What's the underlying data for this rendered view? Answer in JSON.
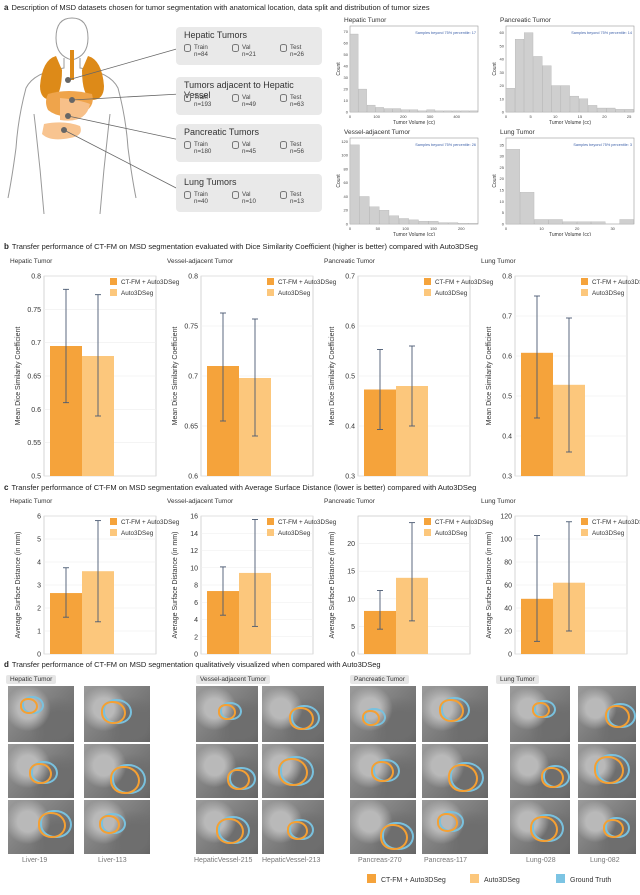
{
  "sections": {
    "a": {
      "letter": "a",
      "text": "Description of MSD datasets chosen for tumor segmentation with anatomical location, data split and distribution of tumor sizes"
    },
    "b": {
      "letter": "b",
      "text": "Transfer performance of CT-FM on MSD segmentation evaluated with Dice Similarity Coefficient (higher is better) compared with Auto3DSeg"
    },
    "c": {
      "letter": "c",
      "text": "Transfer performance of CT-FM on MSD segmentation evaluated with Average Surface Distance (lower is better) compared with Auto3DSeg"
    },
    "d": {
      "letter": "d",
      "text": "Transfer performance of CT-FM on MSD segmentation qualitatively visualized when compared with Auto3DSeg"
    }
  },
  "datasets": [
    {
      "title": "Hepatic Tumors",
      "train": "Train",
      "train_n": "n=84",
      "val": "Val",
      "val_n": "n=21",
      "test": "Test",
      "test_n": "n=26"
    },
    {
      "title": "Tumors adjacent to Hepatic Vessel",
      "train": "Train",
      "train_n": "n=193",
      "val": "Val",
      "val_n": "n=49",
      "test": "Test",
      "test_n": "n=63"
    },
    {
      "title": "Pancreatic Tumors",
      "train": "Train",
      "train_n": "n=180",
      "val": "Val",
      "val_n": "n=45",
      "test": "Test",
      "test_n": "n=56"
    },
    {
      "title": "Lung Tumors",
      "train": "Train",
      "train_n": "n=40",
      "val": "Val",
      "val_n": "n=10",
      "test": "Test",
      "test_n": "n=13"
    }
  ],
  "histograms": [
    {
      "title": "Hepatic Tumor",
      "note": "Samples beyond 75% percentile: 17",
      "ylabel": "Count",
      "xlabel": "Tumor Volume (cc)",
      "xticks": [
        "0",
        "100",
        "200",
        "300",
        "400"
      ],
      "yticks": [
        "0",
        "10",
        "20",
        "30",
        "40",
        "50",
        "60",
        "70"
      ],
      "xmax": 480,
      "ymax": 75,
      "counts": [
        68,
        20,
        6,
        4,
        3,
        3,
        2,
        2,
        1,
        2,
        1,
        1,
        1,
        1,
        1
      ]
    },
    {
      "title": "Pancreatic Tumor",
      "note": "Samples beyond 75% percentile: 14",
      "ylabel": "Count",
      "xlabel": "Tumor Volume (cc)",
      "xticks": [
        "0",
        "5",
        "10",
        "15",
        "20",
        "25"
      ],
      "yticks": [
        "0",
        "10",
        "20",
        "30",
        "40",
        "50",
        "60"
      ],
      "xmax": 26,
      "ymax": 65,
      "counts": [
        18,
        55,
        60,
        42,
        35,
        20,
        20,
        12,
        10,
        5,
        3,
        3,
        2,
        2
      ]
    },
    {
      "title": "Vessel-adjacent Tumor",
      "note": "Samples beyond 75% percentile: 26",
      "ylabel": "Count",
      "xlabel": "Tumor Volume (cc)",
      "xticks": [
        "0",
        "50",
        "100",
        "150",
        "200"
      ],
      "yticks": [
        "0",
        "20",
        "40",
        "60",
        "80",
        "100",
        "120"
      ],
      "xmax": 230,
      "ymax": 125,
      "counts": [
        115,
        40,
        25,
        20,
        12,
        8,
        6,
        4,
        4,
        2,
        2,
        1,
        1
      ]
    },
    {
      "title": "Lung Tumor",
      "note": "Samples beyond 75% percentile: 3",
      "ylabel": "Count",
      "xlabel": "Tumor Volume (cc)",
      "xticks": [
        "0",
        "10",
        "20",
        "30"
      ],
      "yticks": [
        "0",
        "5",
        "10",
        "15",
        "20",
        "25",
        "30",
        "35"
      ],
      "xmax": 36,
      "ymax": 38,
      "counts": [
        33,
        14,
        2,
        2,
        1,
        1,
        1,
        0,
        2
      ]
    }
  ],
  "legend": {
    "ctfm": "CT-FM + Auto3DSeg",
    "auto": "Auto3DSeg",
    "gt": "Ground Truth"
  },
  "colors": {
    "ctfm": "#f5a33b",
    "auto": "#fcc77c",
    "gt": "#7cc4e3",
    "err": "#4a5a72"
  },
  "chart_data": [
    {
      "type": "bar",
      "title": "Hepatic Tumor",
      "ylabel": "Mean Dice Similarity Coefficient",
      "ylim": [
        0.5,
        0.8
      ],
      "yticks": [
        "0.5",
        "0.55",
        "0.6",
        "0.65",
        "0.7",
        "0.75",
        "0.8"
      ],
      "series": [
        {
          "name": "CT-FM + Auto3DSeg",
          "value": 0.695,
          "lo": 0.61,
          "hi": 0.78
        },
        {
          "name": "Auto3DSeg",
          "value": 0.68,
          "lo": 0.59,
          "hi": 0.772
        }
      ]
    },
    {
      "type": "bar",
      "title": "Vessel-adjacent Tumor",
      "ylabel": "Mean Dice Similarity Coefficient",
      "ylim": [
        0.6,
        0.8
      ],
      "yticks": [
        "0.6",
        "0.65",
        "0.7",
        "0.75",
        "0.8"
      ],
      "series": [
        {
          "name": "CT-FM + Auto3DSeg",
          "value": 0.71,
          "lo": 0.655,
          "hi": 0.763
        },
        {
          "name": "Auto3DSeg",
          "value": 0.698,
          "lo": 0.64,
          "hi": 0.757
        }
      ]
    },
    {
      "type": "bar",
      "title": "Pancreatic Tumor",
      "ylabel": "Mean Dice Similarity Coefficient",
      "ylim": [
        0.3,
        0.7
      ],
      "yticks": [
        "0.3",
        "0.4",
        "0.5",
        "0.6",
        "0.7"
      ],
      "series": [
        {
          "name": "CT-FM + Auto3DSeg",
          "value": 0.473,
          "lo": 0.393,
          "hi": 0.553
        },
        {
          "name": "Auto3DSeg",
          "value": 0.48,
          "lo": 0.4,
          "hi": 0.56
        }
      ]
    },
    {
      "type": "bar",
      "title": "Lung Tumor",
      "ylabel": "Mean Dice Similarity Coefficient",
      "ylim": [
        0.3,
        0.8
      ],
      "yticks": [
        "0.3",
        "0.4",
        "0.5",
        "0.6",
        "0.7",
        "0.8"
      ],
      "series": [
        {
          "name": "CT-FM + Auto3DSeg",
          "value": 0.608,
          "lo": 0.445,
          "hi": 0.75
        },
        {
          "name": "Auto3DSeg",
          "value": 0.528,
          "lo": 0.36,
          "hi": 0.695
        }
      ]
    },
    {
      "type": "bar",
      "title": "Hepatic Tumor",
      "ylabel": "Average Surface Distance (in mm)",
      "ylim": [
        0,
        6
      ],
      "yticks": [
        "0",
        "1",
        "2",
        "3",
        "4",
        "5",
        "6"
      ],
      "series": [
        {
          "name": "CT-FM + Auto3DSeg",
          "value": 2.65,
          "lo": 1.6,
          "hi": 3.75
        },
        {
          "name": "Auto3DSeg",
          "value": 3.6,
          "lo": 1.4,
          "hi": 5.8
        }
      ]
    },
    {
      "type": "bar",
      "title": "Vessel-adjacent Tumor",
      "ylabel": "Average Surface Distance (in mm)",
      "ylim": [
        0,
        16
      ],
      "yticks": [
        "0",
        "2",
        "4",
        "6",
        "8",
        "10",
        "12",
        "14",
        "16"
      ],
      "series": [
        {
          "name": "CT-FM + Auto3DSeg",
          "value": 7.3,
          "lo": 4.5,
          "hi": 10.1
        },
        {
          "name": "Auto3DSeg",
          "value": 9.4,
          "lo": 3.2,
          "hi": 15.6
        }
      ]
    },
    {
      "type": "bar",
      "title": "Pancreatic Tumor",
      "ylabel": "Average Surface Distance (in mm)",
      "ylim": [
        0,
        25
      ],
      "yticks": [
        "0",
        "5",
        "10",
        "15",
        "20"
      ],
      "series": [
        {
          "name": "CT-FM + Auto3DSeg",
          "value": 7.8,
          "lo": 4.5,
          "hi": 11.5
        },
        {
          "name": "Auto3DSeg",
          "value": 13.8,
          "lo": 6.0,
          "hi": 23.8
        }
      ]
    },
    {
      "type": "bar",
      "title": "Lung Tumor",
      "ylabel": "Average Surface Distance (in mm)",
      "ylim": [
        0,
        120
      ],
      "yticks": [
        "0",
        "20",
        "40",
        "60",
        "80",
        "100",
        "120"
      ],
      "series": [
        {
          "name": "CT-FM + Auto3DSeg",
          "value": 48,
          "lo": 11,
          "hi": 103
        },
        {
          "name": "Auto3DSeg",
          "value": 62,
          "lo": 20,
          "hi": 115
        }
      ]
    }
  ],
  "qual": {
    "groups": [
      "Hepatic Tumor",
      "Vessel-adjacent Tumor",
      "Pancreatic Tumor",
      "Lung Tumor"
    ],
    "cases": [
      "Liver-19",
      "Liver-113",
      "HepaticVessel-215",
      "HepaticVessel-213",
      "Pancreas-270",
      "Pancreas-117",
      "Lung-028",
      "Lung-082"
    ]
  }
}
